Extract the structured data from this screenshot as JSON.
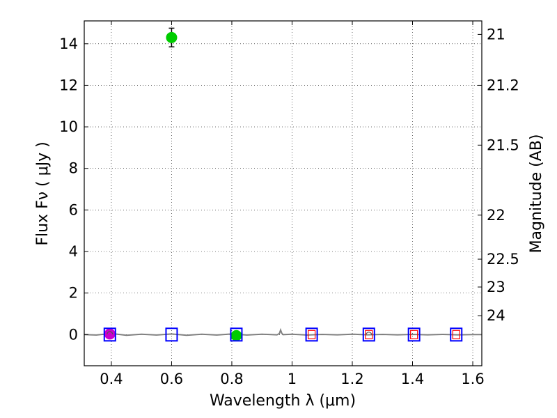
{
  "chart_data": {
    "type": "scatter",
    "title": "",
    "xlabel": "Wavelength  λ (μm)",
    "ylabel": "Flux  Fν  ( μJy )",
    "y2label": "Magnitude (AB)",
    "xlim": [
      0.31,
      1.63
    ],
    "ylim": [
      -1.5,
      15.1
    ],
    "xticks": [
      0.4,
      0.6,
      0.8,
      1.0,
      1.2,
      1.4,
      1.6
    ],
    "xtick_labels": [
      "0.4",
      "0.6",
      "0.8",
      "1",
      "1.2",
      "1.4",
      "1.6"
    ],
    "yticks": [
      0,
      2,
      4,
      6,
      8,
      10,
      12,
      14
    ],
    "ytick_labels": [
      "0",
      "2",
      "4",
      "6",
      "8",
      "10",
      "12",
      "14"
    ],
    "mag_axis": [
      {
        "label": "21",
        "flux": 14.45
      },
      {
        "label": "21.2",
        "flux": 12.0
      },
      {
        "label": "21.5",
        "flux": 9.12
      },
      {
        "label": "22",
        "flux": 5.75
      },
      {
        "label": "22.5",
        "flux": 3.63
      },
      {
        "label": "23",
        "flux": 2.29
      },
      {
        "label": "24",
        "flux": 0.91
      }
    ],
    "grid": true,
    "colors": {
      "green": "#00cc00",
      "magenta": "#cc00cc",
      "blue": "#0000ff",
      "red": "#ff0000",
      "spectrum": "#808080"
    },
    "series": [
      {
        "name": "spectrum",
        "kind": "line",
        "x": [
          0.31,
          0.35,
          0.4,
          0.45,
          0.5,
          0.55,
          0.6,
          0.65,
          0.7,
          0.75,
          0.8,
          0.85,
          0.9,
          0.95,
          0.958,
          0.962,
          0.966,
          0.97,
          1.0,
          1.05,
          1.1,
          1.15,
          1.2,
          1.25,
          1.3,
          1.35,
          1.4,
          1.45,
          1.5,
          1.55,
          1.6,
          1.63
        ],
        "y": [
          0.0,
          -0.02,
          0.05,
          -0.03,
          0.02,
          -0.02,
          0.03,
          -0.03,
          0.02,
          -0.02,
          0.03,
          -0.02,
          0.02,
          -0.01,
          0.05,
          0.22,
          0.06,
          0.0,
          0.02,
          -0.02,
          0.01,
          -0.01,
          0.02,
          -0.01,
          0.01,
          -0.01,
          0.01,
          -0.01,
          0.01,
          -0.01,
          0.0,
          0.0
        ]
      },
      {
        "name": "detections",
        "kind": "circle",
        "points": [
          {
            "x": 0.6,
            "y": 14.3,
            "err": 0.45,
            "color": "green"
          },
          {
            "x": 0.815,
            "y": -0.05,
            "err": 0.05,
            "color": "green"
          },
          {
            "x": 0.395,
            "y": 0.03,
            "err": 0.08,
            "color": "magenta"
          }
        ]
      },
      {
        "name": "model_blue",
        "kind": "square",
        "points": [
          {
            "x": 0.395,
            "y": 0.0
          },
          {
            "x": 0.6,
            "y": 0.0
          },
          {
            "x": 0.815,
            "y": 0.0
          },
          {
            "x": 1.065,
            "y": 0.0
          },
          {
            "x": 1.255,
            "y": 0.0
          },
          {
            "x": 1.405,
            "y": 0.0
          },
          {
            "x": 1.545,
            "y": 0.0
          }
        ]
      },
      {
        "name": "model_red",
        "kind": "square_small",
        "points": [
          {
            "x": 1.065,
            "y": 0.0
          },
          {
            "x": 1.255,
            "y": 0.0
          },
          {
            "x": 1.405,
            "y": 0.0
          },
          {
            "x": 1.545,
            "y": 0.0
          }
        ]
      },
      {
        "name": "upper_limit_arcs",
        "kind": "arc",
        "points": [
          {
            "x": 0.395,
            "y": 0.08
          },
          {
            "x": 1.255,
            "y": 0.05
          }
        ]
      }
    ]
  }
}
